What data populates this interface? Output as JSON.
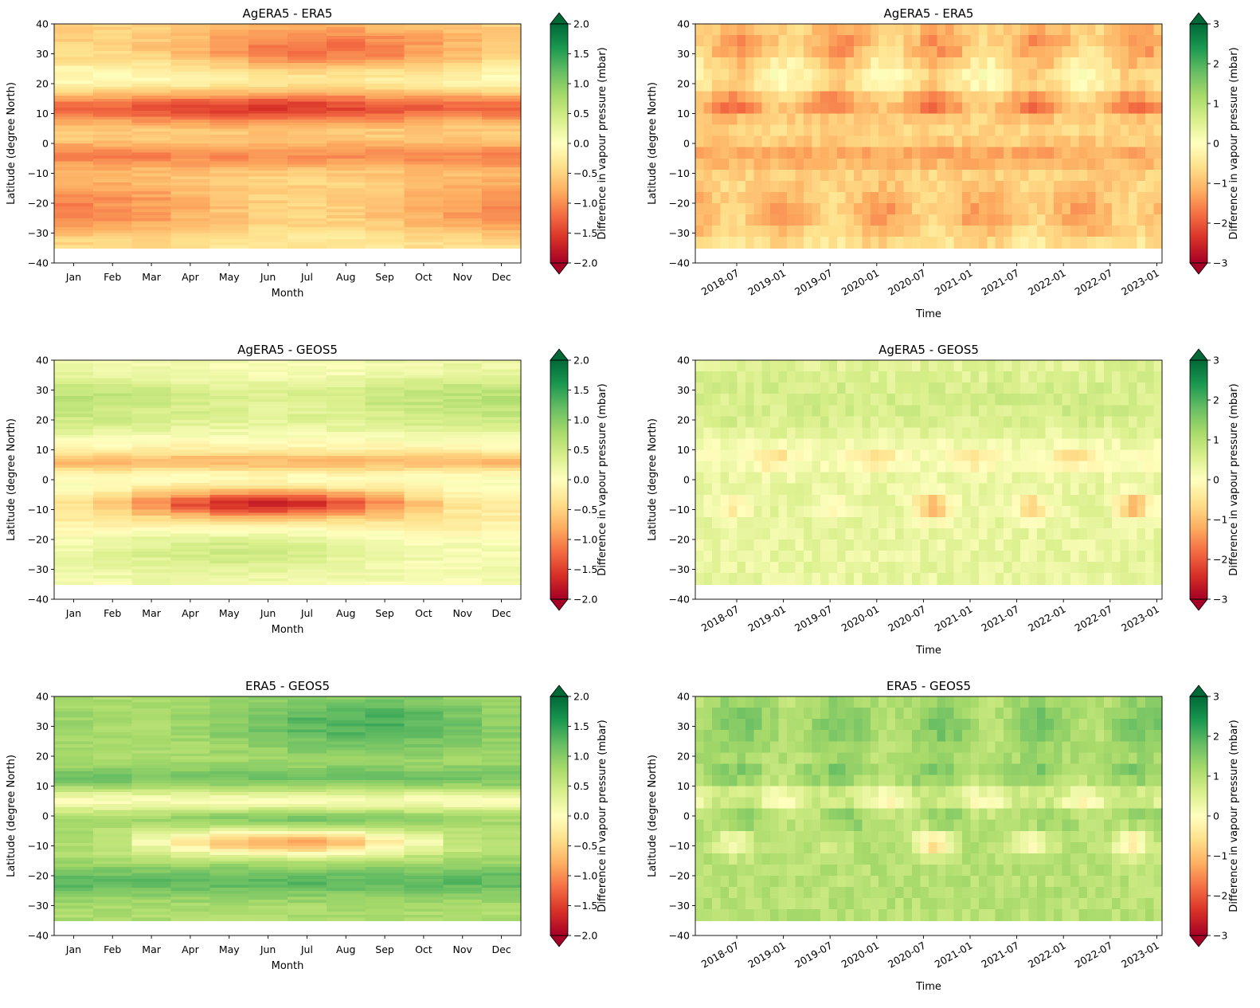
{
  "chart_data": [
    {
      "type": "heatmap",
      "title": "AgERA5 - ERA5",
      "xlabel": "Month",
      "ylabel": "Latitude (degree North)",
      "x_ticks": [
        "Jan",
        "Feb",
        "Mar",
        "Apr",
        "May",
        "Jun",
        "Jul",
        "Aug",
        "Sep",
        "Oct",
        "Nov",
        "Dec"
      ],
      "ylim": [
        -40,
        40
      ],
      "y_ticks": [
        "40",
        "30",
        "20",
        "10",
        "0",
        "−10",
        "−20",
        "−30",
        "−40"
      ],
      "data_lat_range": [
        -35,
        40
      ],
      "colorbar": {
        "label": "Difference in vapour pressure (mbar)",
        "range": [
          -2.0,
          2.0
        ],
        "ticks": [
          "2.0",
          "1.5",
          "1.0",
          "0.5",
          "0.0",
          "−0.5",
          "−1.0",
          "−1.5",
          "−2.0"
        ],
        "colormap": "RdYlGn",
        "extend": "both"
      },
      "bands": [
        {
          "lat": [
            13,
            18
          ],
          "values": [
            -0.9,
            -0.9,
            -1.2,
            -1.5,
            -1.7,
            -1.6,
            -1.5,
            -1.2,
            -1.1,
            -1.1,
            -1.0,
            -1.0
          ]
        },
        {
          "lat": [
            10,
            13
          ],
          "values": [
            -1.2,
            -1.2,
            -1.5,
            -1.6,
            -1.9,
            -1.9,
            -1.7,
            -1.4,
            -1.3,
            -1.6,
            -1.4,
            -1.3
          ]
        },
        {
          "lat": [
            -3,
            -7
          ],
          "values": [
            -1.0,
            -1.0,
            -1.3,
            -1.4,
            -1.5,
            -1.4,
            -1.3,
            -1.3,
            -1.2,
            -1.1,
            -1.0,
            -1.1
          ]
        },
        {
          "lat": [
            -15,
            -28
          ],
          "values": [
            -1.3,
            -1.3,
            -0.9,
            -0.6,
            -0.4,
            -0.3,
            -0.3,
            -0.3,
            -0.4,
            -1.0,
            -1.2,
            -1.3
          ]
        },
        {
          "lat": [
            25,
            37
          ],
          "values": [
            -0.3,
            -0.4,
            -0.7,
            -0.9,
            -1.1,
            -1.3,
            -1.5,
            -1.5,
            -1.1,
            -0.8,
            -0.6,
            -0.4
          ]
        }
      ]
    },
    {
      "type": "heatmap",
      "title": "AgERA5 - ERA5",
      "xlabel": "Time",
      "ylabel": "Latitude (degree North)",
      "x_ticks": [
        "2018-07",
        "2019-01",
        "2019-07",
        "2020-01",
        "2020-07",
        "2021-01",
        "2021-07",
        "2022-01",
        "2022-07",
        "2023-01"
      ],
      "ylim": [
        -40,
        40
      ],
      "y_ticks": [
        "40",
        "30",
        "20",
        "10",
        "0",
        "−10",
        "−20",
        "−30",
        "−40"
      ],
      "data_lat_range": [
        -35,
        40
      ],
      "colorbar": {
        "label": "Difference in vapour pressure (mbar)",
        "range": [
          -3,
          3
        ],
        "ticks": [
          "3",
          "2",
          "1",
          "0",
          "−1",
          "−2",
          "−3"
        ],
        "colormap": "RdYlGn",
        "extend": "both"
      }
    },
    {
      "type": "heatmap",
      "title": "AgERA5 - GEOS5",
      "xlabel": "Month",
      "ylabel": "Latitude (degree North)",
      "x_ticks": [
        "Jan",
        "Feb",
        "Mar",
        "Apr",
        "May",
        "Jun",
        "Jul",
        "Aug",
        "Sep",
        "Oct",
        "Nov",
        "Dec"
      ],
      "ylim": [
        -40,
        40
      ],
      "y_ticks": [
        "40",
        "30",
        "20",
        "10",
        "0",
        "−10",
        "−20",
        "−30",
        "−40"
      ],
      "data_lat_range": [
        -35,
        40
      ],
      "colorbar": {
        "label": "Difference in vapour pressure (mbar)",
        "range": [
          -2.0,
          2.0
        ],
        "ticks": [
          "2.0",
          "1.5",
          "1.0",
          "0.5",
          "0.0",
          "−0.5",
          "−1.0",
          "−1.5",
          "−2.0"
        ],
        "colormap": "RdYlGn",
        "extend": "both"
      },
      "bands": [
        {
          "lat": [
            4,
            9
          ],
          "values": [
            -0.7,
            -0.8,
            -0.8,
            -0.8,
            -0.8,
            -0.5,
            -0.2,
            -0.3,
            -0.5,
            -0.6,
            -0.9,
            -1.0
          ]
        },
        {
          "lat": [
            -5,
            -13
          ],
          "values": [
            -0.2,
            -0.3,
            -0.4,
            -0.7,
            -1.7,
            -1.9,
            -1.7,
            -1.1,
            -1.0,
            -0.8,
            -0.3,
            -0.2
          ]
        },
        {
          "lat": [
            18,
            33
          ],
          "values": [
            0.5,
            0.5,
            0.3,
            0.2,
            -0.1,
            -0.2,
            0.4,
            0.5,
            0.6,
            0.8,
            0.9,
            0.8
          ]
        }
      ]
    },
    {
      "type": "heatmap",
      "title": "AgERA5 - GEOS5",
      "xlabel": "Time",
      "ylabel": "Latitude (degree North)",
      "x_ticks": [
        "2018-07",
        "2019-01",
        "2019-07",
        "2020-01",
        "2020-07",
        "2021-01",
        "2021-07",
        "2022-01",
        "2022-07",
        "2023-01"
      ],
      "ylim": [
        -40,
        40
      ],
      "y_ticks": [
        "40",
        "30",
        "20",
        "10",
        "0",
        "−10",
        "−20",
        "−30",
        "−40"
      ],
      "data_lat_range": [
        -35,
        40
      ],
      "colorbar": {
        "label": "Difference in vapour pressure (mbar)",
        "range": [
          -3,
          3
        ],
        "ticks": [
          "3",
          "2",
          "1",
          "0",
          "−1",
          "−2",
          "−3"
        ],
        "colormap": "RdYlGn",
        "extend": "both"
      }
    },
    {
      "type": "heatmap",
      "title": "ERA5 - GEOS5",
      "xlabel": "Month",
      "ylabel": "Latitude (degree North)",
      "x_ticks": [
        "Jan",
        "Feb",
        "Mar",
        "Apr",
        "May",
        "Jun",
        "Jul",
        "Aug",
        "Sep",
        "Oct",
        "Nov",
        "Dec"
      ],
      "ylim": [
        -40,
        40
      ],
      "y_ticks": [
        "40",
        "30",
        "20",
        "10",
        "0",
        "−10",
        "−20",
        "−30",
        "−40"
      ],
      "data_lat_range": [
        -35,
        40
      ],
      "colorbar": {
        "label": "Difference in vapour pressure (mbar)",
        "range": [
          -2.0,
          2.0
        ],
        "ticks": [
          "2.0",
          "1.5",
          "1.0",
          "0.5",
          "0.0",
          "−0.5",
          "−1.0",
          "−1.5",
          "−2.0"
        ],
        "colormap": "RdYlGn",
        "extend": "both"
      },
      "bands": [
        {
          "lat": [
            -6,
            -13
          ],
          "values": [
            0.6,
            0.7,
            0.5,
            0.3,
            -0.7,
            -1.0,
            -0.6,
            -0.2,
            -0.1,
            0.3,
            0.8,
            0.7
          ]
        },
        {
          "lat": [
            28,
            38
          ],
          "values": [
            0.8,
            0.8,
            0.7,
            0.7,
            0.8,
            1.0,
            1.6,
            1.7,
            1.5,
            1.3,
            1.2,
            1.0
          ]
        },
        {
          "lat": [
            11,
            16
          ],
          "values": [
            0.9,
            0.8,
            0.8,
            0.9,
            1.1,
            1.2,
            1.5,
            1.6,
            0.6,
            1.3,
            1.1,
            1.0
          ]
        }
      ]
    },
    {
      "type": "heatmap",
      "title": "ERA5 - GEOS5",
      "xlabel": "Time",
      "ylabel": "Latitude (degree North)",
      "x_ticks": [
        "2018-07",
        "2019-01",
        "2019-07",
        "2020-01",
        "2020-07",
        "2021-01",
        "2021-07",
        "2022-01",
        "2022-07",
        "2023-01"
      ],
      "ylim": [
        -40,
        40
      ],
      "y_ticks": [
        "40",
        "30",
        "20",
        "10",
        "0",
        "−10",
        "−20",
        "−30",
        "−40"
      ],
      "data_lat_range": [
        -35,
        40
      ],
      "colorbar": {
        "label": "Difference in vapour pressure (mbar)",
        "range": [
          -3,
          3
        ],
        "ticks": [
          "3",
          "2",
          "1",
          "0",
          "−1",
          "−2",
          "−3"
        ],
        "colormap": "RdYlGn",
        "extend": "both"
      }
    }
  ]
}
